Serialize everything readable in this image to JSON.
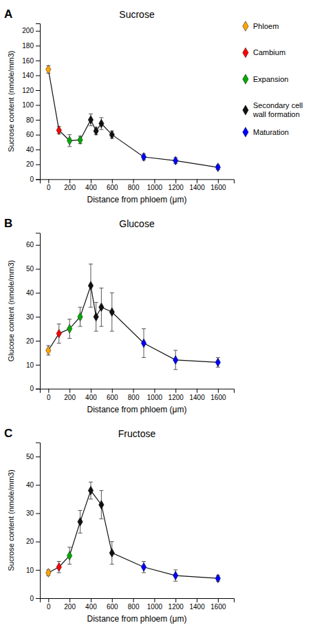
{
  "chart_data": [
    {
      "type": "line",
      "title": "Sucrose",
      "annotations": [
        "A"
      ],
      "xlabel": "Distance from phloem (μm)",
      "ylabel": "Sucrose content (nmole/mm3)",
      "x": [
        0,
        100,
        200,
        300,
        400,
        450,
        500,
        600,
        900,
        1200,
        1600
      ],
      "values": [
        148,
        66,
        52,
        53,
        80,
        65,
        75,
        60,
        30,
        25,
        16
      ],
      "yerr": [
        5,
        5,
        8,
        5,
        8,
        5,
        8,
        5,
        4,
        4,
        3
      ],
      "colors": [
        "#FFA500",
        "#FF0000",
        "#00AA00",
        "#00AA00",
        "#111111",
        "#111111",
        "#111111",
        "#111111",
        "#0000FF",
        "#0000FF",
        "#0000FF"
      ],
      "color": "#111111",
      "marker": "diamond",
      "xlim": [
        -80,
        1750
      ],
      "xticks": [
        0,
        200,
        400,
        600,
        800,
        1000,
        1200,
        1400,
        1600
      ],
      "ylim": [
        0,
        210
      ],
      "yticks": [
        0,
        20,
        40,
        60,
        80,
        100,
        120,
        140,
        160,
        180,
        200
      ],
      "legend_entries": [
        {
          "name": "Phloem",
          "color": "#FFA500"
        },
        {
          "name": "Cambium",
          "color": "#FF0000"
        },
        {
          "name": "Expansion",
          "color": "#00AA00"
        },
        {
          "name": "Secondary cell\nwall formation",
          "color": "#111111"
        },
        {
          "name": "Maturation",
          "color": "#0000FF"
        }
      ]
    },
    {
      "type": "line",
      "title": "Glucose",
      "annotations": [
        "B"
      ],
      "xlabel": "Distance from phloem (μm)",
      "ylabel": "Glucose content (nmole/mm3)",
      "x": [
        0,
        100,
        200,
        300,
        400,
        450,
        500,
        600,
        900,
        1200,
        1600
      ],
      "values": [
        16,
        23,
        25,
        30,
        43,
        30,
        34,
        32,
        19,
        12,
        11
      ],
      "yerr": [
        2,
        4,
        4,
        4,
        9,
        6,
        8,
        8,
        6,
        4,
        2
      ],
      "colors": [
        "#FFA500",
        "#FF0000",
        "#00AA00",
        "#00AA00",
        "#111111",
        "#111111",
        "#111111",
        "#111111",
        "#0000FF",
        "#0000FF",
        "#0000FF"
      ],
      "color": "#111111",
      "marker": "diamond",
      "xlim": [
        -80,
        1750
      ],
      "xticks": [
        0,
        200,
        400,
        600,
        800,
        1000,
        1200,
        1400,
        1600
      ],
      "ylim": [
        0,
        65
      ],
      "yticks": [
        0,
        10,
        20,
        30,
        40,
        50,
        60
      ]
    },
    {
      "type": "line",
      "title": "Fructose",
      "annotations": [
        "C"
      ],
      "xlabel": "Distance from phloem (μm)",
      "ylabel": "Sucrose content (nmole/mm3)",
      "x": [
        0,
        100,
        200,
        300,
        400,
        500,
        600,
        900,
        1200,
        1600
      ],
      "values": [
        9,
        11,
        15,
        27,
        38,
        33,
        16,
        11,
        8,
        7
      ],
      "yerr": [
        1,
        2,
        3,
        4,
        3,
        5,
        4,
        2,
        2,
        1
      ],
      "colors": [
        "#FFA500",
        "#FF0000",
        "#00AA00",
        "#111111",
        "#111111",
        "#111111",
        "#111111",
        "#0000FF",
        "#0000FF",
        "#0000FF"
      ],
      "color": "#111111",
      "marker": "diamond",
      "xlim": [
        -80,
        1750
      ],
      "xticks": [
        0,
        200,
        400,
        600,
        800,
        1000,
        1200,
        1400,
        1600
      ],
      "ylim": [
        0,
        55
      ],
      "yticks": [
        0,
        10,
        20,
        30,
        40,
        50
      ]
    }
  ]
}
